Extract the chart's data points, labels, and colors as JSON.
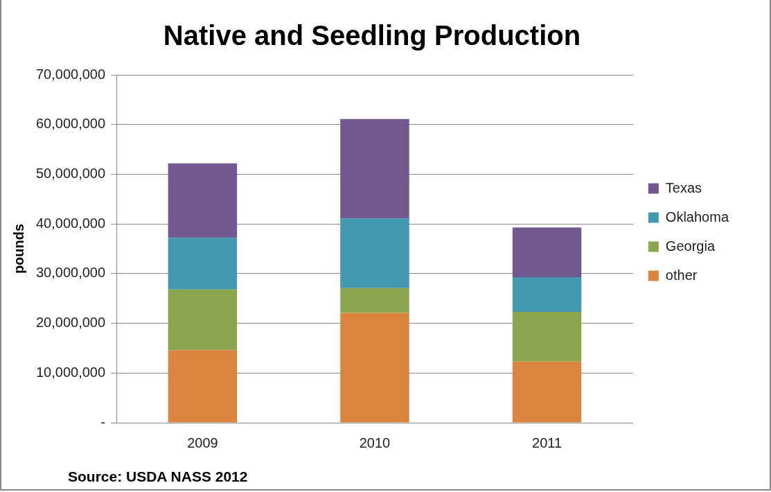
{
  "chart_data": {
    "type": "bar",
    "title": "Native and Seedling Production",
    "ylabel": "pounds",
    "categories": [
      "2009",
      "2010",
      "2011"
    ],
    "stacked": true,
    "series": [
      {
        "name": "other",
        "color": "#db843d",
        "values": [
          14600000,
          22100000,
          12300000
        ]
      },
      {
        "name": "Georgia",
        "color": "#89a54e",
        "values": [
          12200000,
          5000000,
          10000000
        ]
      },
      {
        "name": "Oklahoma",
        "color": "#4198af",
        "values": [
          10400000,
          14000000,
          7000000
        ]
      },
      {
        "name": "Texas",
        "color": "#71588f",
        "values": [
          15000000,
          20000000,
          10000000
        ]
      }
    ],
    "ylim": [
      0,
      70000000
    ],
    "yticks": [
      {
        "value": 0,
        "label": "-"
      },
      {
        "value": 10000000,
        "label": "10,000,000"
      },
      {
        "value": 20000000,
        "label": "20,000,000"
      },
      {
        "value": 30000000,
        "label": "30,000,000"
      },
      {
        "value": 40000000,
        "label": "40,000,000"
      },
      {
        "value": 50000000,
        "label": "50,000,000"
      },
      {
        "value": 60000000,
        "label": "60,000,000"
      },
      {
        "value": 70000000,
        "label": "70,000,000"
      }
    ],
    "grid": "y",
    "legend": "right",
    "annotations": [
      "Source: USDA NASS 2012"
    ]
  }
}
